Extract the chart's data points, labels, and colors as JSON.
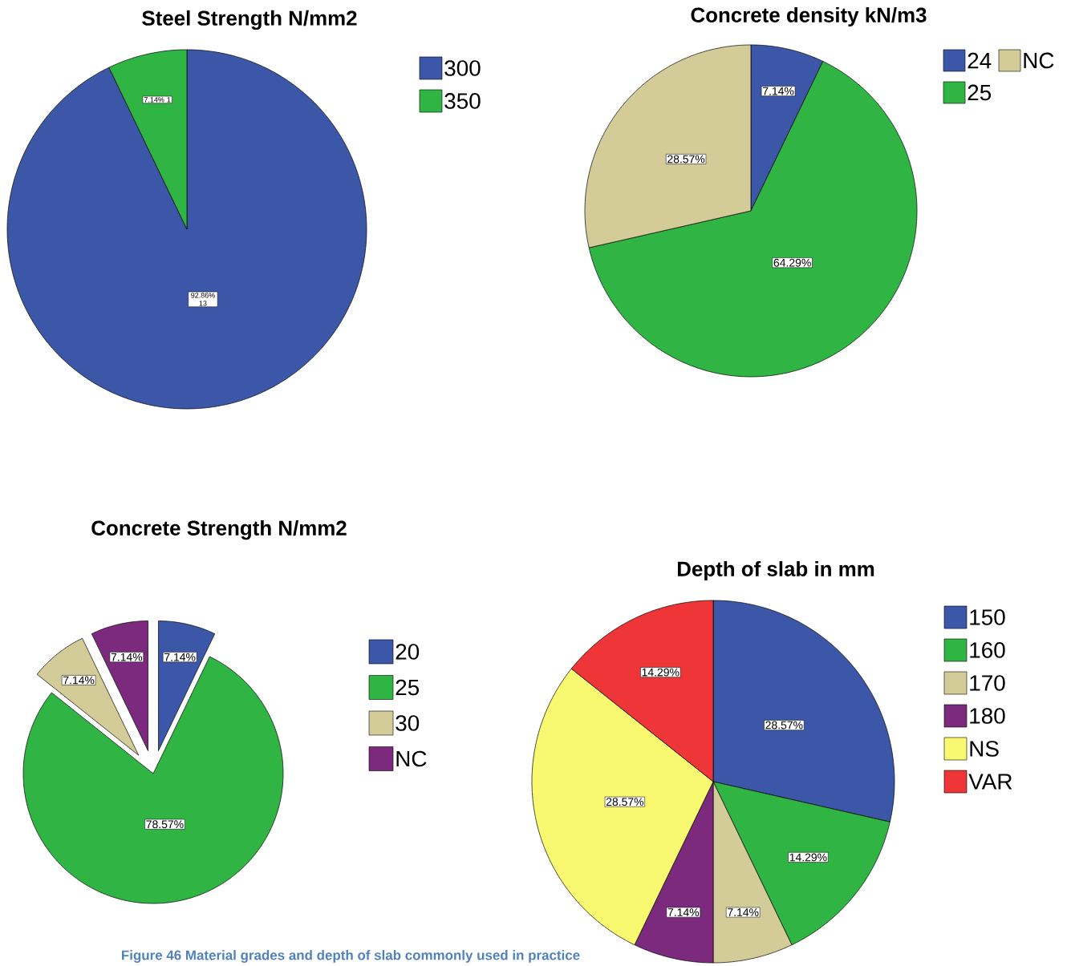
{
  "chart_data": [
    {
      "type": "pie",
      "title": "Steel Strength N/mm2",
      "categories": [
        "300",
        "350"
      ],
      "values": [
        13,
        1
      ],
      "colors": [
        "#3c57a8",
        "#30b545"
      ],
      "value_labels": [
        "92.86% 13",
        "7.14% 1"
      ],
      "legend": "top right"
    },
    {
      "type": "pie",
      "title": "Concrete density kN/m3",
      "categories": [
        "24",
        "25",
        "NC"
      ],
      "values": [
        7.14,
        64.29,
        28.57
      ],
      "colors": [
        "#3c57a8",
        "#30b545",
        "#d4cc98"
      ],
      "value_labels": [
        "7.14%",
        "64.29%",
        "28.57%"
      ],
      "legend": "top right"
    },
    {
      "type": "pie",
      "title": "Concrete Strength N/mm2",
      "categories": [
        "20",
        "25",
        "30",
        "NC"
      ],
      "values": [
        7.14,
        78.57,
        7.14,
        7.14
      ],
      "colors": [
        "#3c57a8",
        "#30b545",
        "#d4cc98",
        "#7b2a7d"
      ],
      "value_labels": [
        "7.14%",
        "78.57%",
        "7.14%",
        "7.14%"
      ],
      "legend": "right"
    },
    {
      "type": "pie",
      "title": "Depth of slab in mm",
      "categories": [
        "150",
        "160",
        "170",
        "180",
        "NS",
        "VAR"
      ],
      "values": [
        28.57,
        14.29,
        7.14,
        7.14,
        28.57,
        14.29
      ],
      "colors": [
        "#3c57a8",
        "#30b545",
        "#d4cc98",
        "#7b2a7d",
        "#f9f871",
        "#ee3538"
      ],
      "value_labels": [
        "28.57%",
        "14.29%",
        "7.14%",
        "7.14%",
        "28.57%",
        "14.29%"
      ],
      "legend": "top right",
      "annotations": [
        "Figure 46 Material grades and depth of slab commonly used in practice"
      ]
    }
  ]
}
